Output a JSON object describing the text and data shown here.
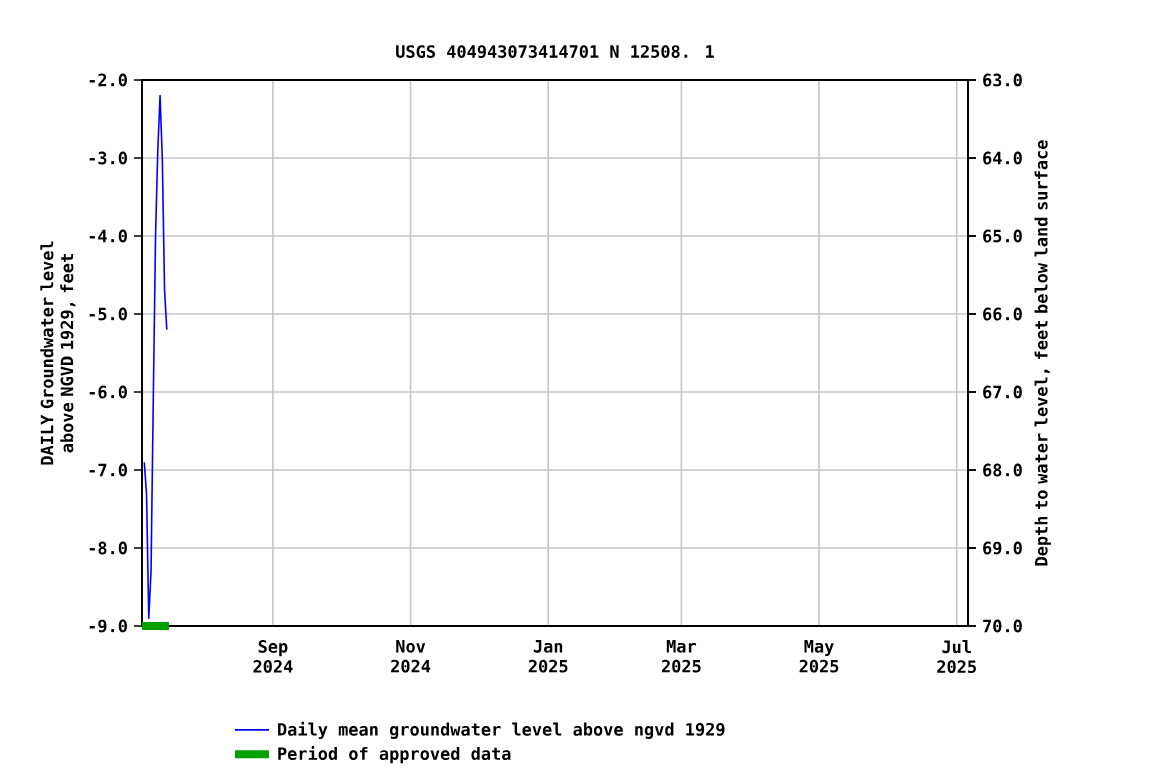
{
  "chart_data": {
    "type": "line",
    "title": "USGS 404943073414701 N 12508. 1",
    "ylabel": "DAILY Groundwater level above NGVD 1929, feet",
    "y2label": "Depth to water level, feet below land surface",
    "x": [
      "2024-07-06",
      "2024-07-07",
      "2024-07-08",
      "2024-07-09",
      "2024-07-10",
      "2024-07-11",
      "2024-07-12",
      "2024-07-13",
      "2024-07-14",
      "2024-07-15",
      "2024-07-16"
    ],
    "series": [
      {
        "name": "Daily mean groundwater level above ngvd 1929",
        "color": "#0000ff",
        "values": [
          -6.9,
          -7.3,
          -8.9,
          -8.3,
          -6.1,
          -4.0,
          -2.9,
          -2.2,
          -3.0,
          -4.7,
          -5.2
        ]
      },
      {
        "name": "Period of approved data",
        "color": "#00a000",
        "x": [
          "2024-07-05",
          "2024-07-17"
        ],
        "values": [
          -9.0,
          -9.0
        ]
      }
    ],
    "xlim": [
      "2024-07-05",
      "2025-07-06"
    ],
    "xticks": [
      {
        "value": "2024-09-01",
        "label": "Sep 2024"
      },
      {
        "value": "2024-11-01",
        "label": "Nov 2024"
      },
      {
        "value": "2025-01-01",
        "label": "Jan 2025"
      },
      {
        "value": "2025-03-01",
        "label": "Mar 2025"
      },
      {
        "value": "2025-05-01",
        "label": "May 2025"
      },
      {
        "value": "2025-07-01",
        "label": "Jul 2025"
      }
    ],
    "ylim": [
      -9.0,
      -2.0
    ],
    "yticks": [
      {
        "value": -9,
        "label": "-9.0"
      },
      {
        "value": -8,
        "label": "-8.0"
      },
      {
        "value": -7,
        "label": "-7.0"
      },
      {
        "value": -6,
        "label": "-6.0"
      },
      {
        "value": -5,
        "label": "-5.0"
      },
      {
        "value": -4,
        "label": "-4.0"
      },
      {
        "value": -3,
        "label": "-3.0"
      },
      {
        "value": -2,
        "label": "-2.0"
      }
    ],
    "y2lim": [
      70.0,
      63.0
    ],
    "y2ticks": [
      {
        "value": 63,
        "label": "63.0"
      },
      {
        "value": 64,
        "label": "64.0"
      },
      {
        "value": 65,
        "label": "65.0"
      },
      {
        "value": 66,
        "label": "66.0"
      },
      {
        "value": 67,
        "label": "67.0"
      },
      {
        "value": 68,
        "label": "68.0"
      },
      {
        "value": 69,
        "label": "69.0"
      },
      {
        "value": 70,
        "label": "70.0"
      }
    ],
    "grid": true,
    "legend": "bottom"
  }
}
